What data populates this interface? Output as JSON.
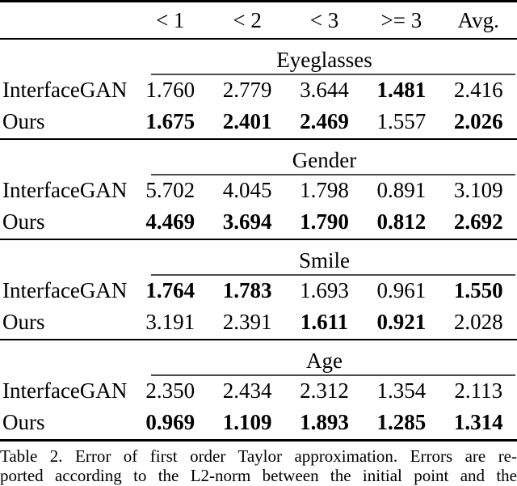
{
  "colors": {
    "background": "#ffffff",
    "text": "#000000",
    "heavy_rule": "#000000",
    "section_rule": "#4d4d4d"
  },
  "table": {
    "columns": [
      "< 1",
      "< 2",
      "< 3",
      ">= 3",
      "Avg."
    ],
    "sections": [
      {
        "title": "Eyeglasses",
        "rows": [
          {
            "label": "InterfaceGAN",
            "values": [
              "1.760",
              "2.779",
              "3.644",
              "1.481",
              "2.416"
            ],
            "bold": [
              false,
              false,
              false,
              true,
              false
            ]
          },
          {
            "label": "Ours",
            "values": [
              "1.675",
              "2.401",
              "2.469",
              "1.557",
              "2.026"
            ],
            "bold": [
              true,
              true,
              true,
              false,
              true
            ]
          }
        ]
      },
      {
        "title": "Gender",
        "rows": [
          {
            "label": "InterfaceGAN",
            "values": [
              "5.702",
              "4.045",
              "1.798",
              "0.891",
              "3.109"
            ],
            "bold": [
              false,
              false,
              false,
              false,
              false
            ]
          },
          {
            "label": "Ours",
            "values": [
              "4.469",
              "3.694",
              "1.790",
              "0.812",
              "2.692"
            ],
            "bold": [
              true,
              true,
              true,
              true,
              true
            ]
          }
        ]
      },
      {
        "title": "Smile",
        "rows": [
          {
            "label": "InterfaceGAN",
            "values": [
              "1.764",
              "1.783",
              "1.693",
              "0.961",
              "1.550"
            ],
            "bold": [
              true,
              true,
              false,
              false,
              true
            ]
          },
          {
            "label": "Ours",
            "values": [
              "3.191",
              "2.391",
              "1.611",
              "0.921",
              "2.028"
            ],
            "bold": [
              false,
              false,
              true,
              true,
              false
            ]
          }
        ]
      },
      {
        "title": "Age",
        "rows": [
          {
            "label": "InterfaceGAN",
            "values": [
              "2.350",
              "2.434",
              "2.312",
              "1.354",
              "2.113"
            ],
            "bold": [
              false,
              false,
              false,
              false,
              false
            ]
          },
          {
            "label": "Ours",
            "values": [
              "0.969",
              "1.109",
              "1.893",
              "1.285",
              "1.314"
            ],
            "bold": [
              true,
              true,
              true,
              true,
              true
            ]
          }
        ]
      }
    ]
  },
  "caption": {
    "line1": "Table 2. Error of first order Taylor approximation.  Errors are re-",
    "line2": "ported according to the L2-norm between the initial point and the"
  }
}
